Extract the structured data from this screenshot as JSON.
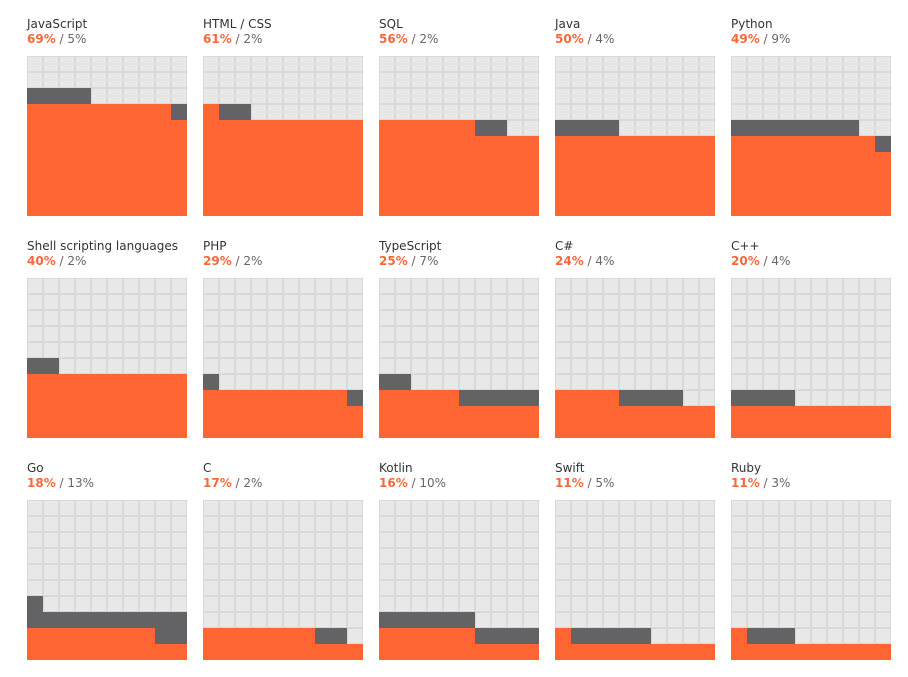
{
  "colors": {
    "primary": "#ff6633",
    "secondary": "#636265",
    "background": "#e8e8e8",
    "gridline": "#d9d9d9",
    "primary_text": "#f4683b",
    "label_text": "#333333",
    "secondary_text": "#666666"
  },
  "chart_data": {
    "type": "waffle",
    "grid": "10x10",
    "series": [
      {
        "name": "primary"
      },
      {
        "name": "secondary"
      }
    ],
    "items": [
      {
        "name": "JavaScript",
        "primary_label": "69%",
        "separator": " / ",
        "secondary_label": "5%",
        "primary": 69,
        "secondary": 5
      },
      {
        "name": "HTML / CSS",
        "primary_label": "61%",
        "separator": " / ",
        "secondary_label": "2%",
        "primary": 61,
        "secondary": 2
      },
      {
        "name": "SQL",
        "primary_label": "56%",
        "separator": " / ",
        "secondary_label": "2%",
        "primary": 56,
        "secondary": 2
      },
      {
        "name": "Java",
        "primary_label": "50%",
        "separator": " / ",
        "secondary_label": "4%",
        "primary": 50,
        "secondary": 4
      },
      {
        "name": "Python",
        "primary_label": "49%",
        "separator": " / ",
        "secondary_label": "9%",
        "primary": 49,
        "secondary": 9
      },
      {
        "name": "Shell scripting languages",
        "primary_label": "40%",
        "separator": " / ",
        "secondary_label": "2%",
        "primary": 40,
        "secondary": 2
      },
      {
        "name": "PHP",
        "primary_label": "29%",
        "separator": " / ",
        "secondary_label": "2%",
        "primary": 29,
        "secondary": 2
      },
      {
        "name": "TypeScript",
        "primary_label": "25%",
        "separator": " / ",
        "secondary_label": "7%",
        "primary": 25,
        "secondary": 7
      },
      {
        "name": "C#",
        "primary_label": "24%",
        "separator": " / ",
        "secondary_label": "4%",
        "primary": 24,
        "secondary": 4
      },
      {
        "name": "C++",
        "primary_label": "20%",
        "separator": " / ",
        "secondary_label": "4%",
        "primary": 20,
        "secondary": 4
      },
      {
        "name": "Go",
        "primary_label": "18%",
        "separator": " / ",
        "secondary_label": "13%",
        "primary": 18,
        "secondary": 13
      },
      {
        "name": "C",
        "primary_label": "17%",
        "separator": " / ",
        "secondary_label": "2%",
        "primary": 17,
        "secondary": 2
      },
      {
        "name": "Kotlin",
        "primary_label": "16%",
        "separator": " / ",
        "secondary_label": "10%",
        "primary": 16,
        "secondary": 10
      },
      {
        "name": "Swift",
        "primary_label": "11%",
        "separator": " / ",
        "secondary_label": "5%",
        "primary": 11,
        "secondary": 5
      },
      {
        "name": "Ruby",
        "primary_label": "11%",
        "separator": " / ",
        "secondary_label": "3%",
        "primary": 11,
        "secondary": 3
      }
    ]
  }
}
